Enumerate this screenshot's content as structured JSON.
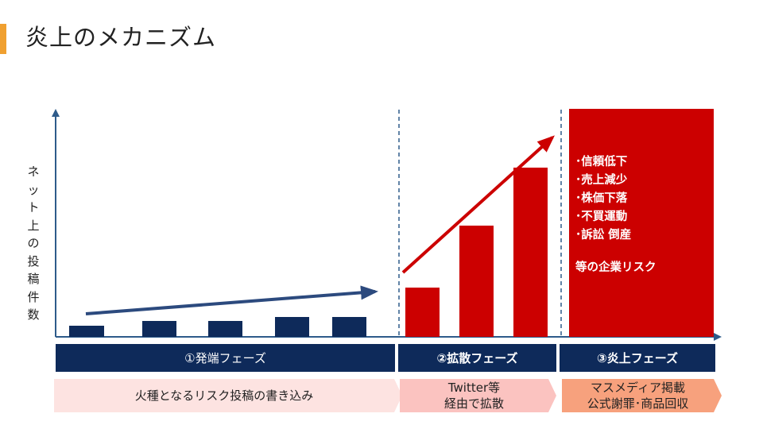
{
  "slide": {
    "title": "炎上のメカニズム",
    "accent_color": "#f0a030"
  },
  "chart": {
    "y_axis_label": "ネット上の投稿件数",
    "bars": [
      {
        "phase": 1,
        "value": 14
      },
      {
        "phase": 1,
        "value": 20
      },
      {
        "phase": 1,
        "value": 20
      },
      {
        "phase": 1,
        "value": 25
      },
      {
        "phase": 1,
        "value": 25
      },
      {
        "phase": 2,
        "value": 62
      },
      {
        "phase": 2,
        "value": 140
      },
      {
        "phase": 2,
        "value": 213
      }
    ]
  },
  "phases": [
    {
      "label": "①発端フェーズ",
      "color": "#0e2a5a"
    },
    {
      "label": "②拡散フェーズ",
      "color": "#0e2a5a"
    },
    {
      "label": "③炎上フェーズ",
      "color": "#0e2a5a"
    }
  ],
  "descriptions": [
    {
      "text": "火種となるリスク投稿の書き込み",
      "color": "#fde3e1"
    },
    {
      "line1": "Twitter等",
      "line2": "経由で拡散",
      "color": "#fbc3c0"
    },
    {
      "line1": "マスメディア掲載",
      "line2": "公式謝罪･商品回収",
      "color": "#f7a17d"
    }
  ],
  "risks": {
    "items": [
      "･信頼低下",
      "･売上減少",
      "･株価下落",
      "･不買運動",
      "･訴訟 倒産"
    ],
    "footer": "等の企業リスク",
    "box_color": "#cc0000"
  },
  "colors": {
    "axis": "#2e5b8a",
    "divider": "#2e5b8a",
    "blue_arrow": "#2c4a7e",
    "red_arrow": "#cc0000"
  }
}
